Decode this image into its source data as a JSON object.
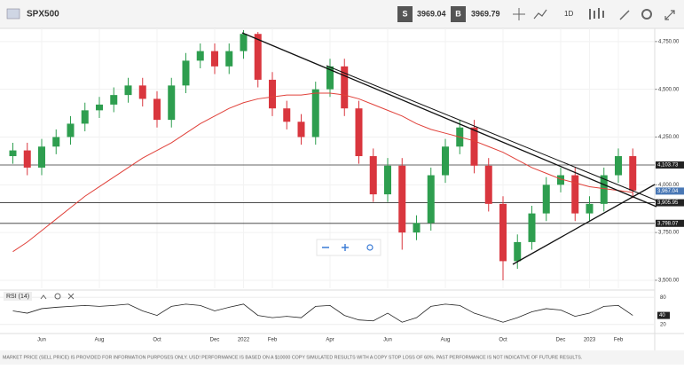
{
  "toolbar": {
    "symbol": "SPX500",
    "sell_label": "S",
    "sell": 3969.04,
    "buy_label": "B",
    "buy": 3969.79,
    "interval": "1D"
  },
  "chart_data": {
    "type": "candlestick",
    "categories": [
      null,
      null,
      "Jun",
      null,
      null,
      null,
      "Aug",
      null,
      null,
      null,
      "Oct",
      null,
      null,
      null,
      "Dec",
      null,
      "2022",
      null,
      "Feb",
      null,
      null,
      null,
      "Apr",
      null,
      null,
      null,
      "Jun",
      null,
      null,
      null,
      "Aug",
      null,
      null,
      null,
      "Oct",
      null,
      null,
      null,
      "Dec",
      null,
      "2023",
      null,
      "Feb",
      null
    ],
    "open": [
      4150,
      4180,
      4090,
      4200,
      4250,
      4320,
      4390,
      4420,
      4470,
      4520,
      4450,
      4340,
      4520,
      4650,
      4700,
      4620,
      4700,
      4790,
      4550,
      4400,
      4330,
      4250,
      4500,
      4620,
      4400,
      4150,
      3950,
      4100,
      3750,
      3800,
      4050,
      4200,
      4300,
      4100,
      3900,
      3600,
      3700,
      3850,
      4000,
      4050,
      3850,
      3900,
      4050,
      4150
    ],
    "high": [
      4220,
      4220,
      4240,
      4290,
      4360,
      4430,
      4460,
      4510,
      4560,
      4560,
      4490,
      4560,
      4690,
      4740,
      4740,
      4740,
      4810,
      4800,
      4590,
      4440,
      4370,
      4540,
      4660,
      4660,
      4440,
      4190,
      4140,
      4140,
      3840,
      4090,
      4240,
      4340,
      4340,
      4140,
      3940,
      3740,
      3890,
      4040,
      4090,
      4090,
      3940,
      4090,
      4190,
      4190
    ],
    "low": [
      4110,
      4050,
      4050,
      4160,
      4210,
      4280,
      4350,
      4380,
      4430,
      4410,
      4300,
      4300,
      4480,
      4610,
      4580,
      4580,
      4660,
      4510,
      4360,
      4290,
      4210,
      4210,
      4460,
      4360,
      4110,
      3910,
      3910,
      3660,
      3710,
      3760,
      4010,
      4160,
      4060,
      3860,
      3500,
      3560,
      3660,
      3810,
      3960,
      3810,
      3810,
      3860,
      4010,
      3930
    ],
    "close": [
      4180,
      4090,
      4200,
      4250,
      4320,
      4390,
      4420,
      4470,
      4520,
      4450,
      4340,
      4520,
      4650,
      4700,
      4620,
      4700,
      4790,
      4550,
      4400,
      4330,
      4250,
      4500,
      4620,
      4400,
      4150,
      3950,
      4100,
      3750,
      3800,
      4050,
      4200,
      4300,
      4100,
      3900,
      3600,
      3700,
      3850,
      4000,
      4050,
      3850,
      3900,
      4050,
      4150,
      3970
    ],
    "up_color": "#2e9e4f",
    "down_color": "#d9363e",
    "ma": {
      "color": "#e0413a",
      "values": [
        3650,
        3700,
        3760,
        3820,
        3880,
        3940,
        3990,
        4040,
        4090,
        4140,
        4180,
        4220,
        4270,
        4320,
        4360,
        4400,
        4430,
        4450,
        4460,
        4470,
        4470,
        4480,
        4480,
        4470,
        4450,
        4420,
        4390,
        4360,
        4320,
        4290,
        4270,
        4250,
        4230,
        4200,
        4170,
        4130,
        4090,
        4060,
        4030,
        4010,
        3990,
        3980,
        3970,
        3960
      ]
    },
    "ylim": [
      3458,
      4819
    ],
    "yticks": [
      {
        "value": 3500,
        "label": "3,500.00"
      },
      {
        "value": 3750,
        "label": "3,750.00"
      },
      {
        "value": 4000,
        "label": "4,000.00"
      },
      {
        "value": 4250,
        "label": "4,250.00"
      },
      {
        "value": 4500,
        "label": "4,500.00"
      },
      {
        "value": 4750,
        "label": "4,750.00"
      }
    ],
    "hlines": [
      {
        "value": 4103.73,
        "label": "4,103.73"
      },
      {
        "value": 3905.95,
        "label": "3,905.95"
      },
      {
        "value": 3798.07,
        "label": "3,798.07"
      }
    ],
    "last": {
      "value": 3967.04,
      "label": "3,967.04"
    },
    "rsi": {
      "title": "RSI (14)",
      "color": "#222222",
      "ylim": [
        0,
        100
      ],
      "yticks": [
        20,
        80
      ],
      "values": [
        50,
        45,
        55,
        58,
        60,
        62,
        60,
        62,
        65,
        50,
        40,
        60,
        65,
        62,
        50,
        58,
        65,
        40,
        35,
        38,
        35,
        60,
        62,
        40,
        30,
        28,
        45,
        25,
        35,
        60,
        65,
        62,
        45,
        35,
        25,
        35,
        48,
        55,
        52,
        38,
        45,
        60,
        62,
        40
      ]
    }
  },
  "footer": "MARKET PRICE (SELL PRICE) IS PROVIDED FOR INFORMATION PURPOSES ONLY. USD! PERFORMANCE IS BASED ON A $10000 COPY SIMULATED RESULTS WITH A COPY STOP LOSS OF 60%. PAST PERFORMANCE IS NOT INDICATIVE OF FUTURE RESULTS."
}
